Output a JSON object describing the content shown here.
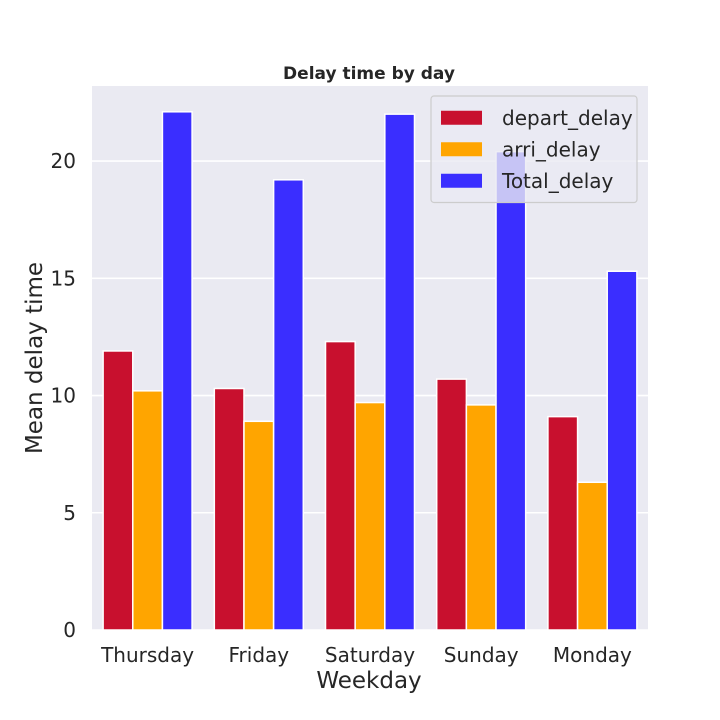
{
  "chart_data": {
    "type": "bar",
    "title": "Delay time by day",
    "xlabel": "Weekday",
    "ylabel": "Mean delay time",
    "categories": [
      "Thursday",
      "Friday",
      "Saturday",
      "Sunday",
      "Monday"
    ],
    "series": [
      {
        "name": "depart_delay",
        "color": "#c8102e",
        "values": [
          11.9,
          10.3,
          12.3,
          10.7,
          9.1
        ]
      },
      {
        "name": "arri_delay",
        "color": "#ffa500",
        "values": [
          10.2,
          8.9,
          9.7,
          9.6,
          6.3
        ]
      },
      {
        "name": "Total_delay",
        "color": "#3a2eff",
        "values": [
          22.1,
          19.2,
          22.0,
          20.4,
          15.3
        ]
      }
    ],
    "ylim": [
      0,
      23.2
    ],
    "yticks": [
      0,
      5,
      10,
      15,
      20
    ],
    "grid": true,
    "legend_position": "top-right",
    "background": "#eaeaf2"
  }
}
